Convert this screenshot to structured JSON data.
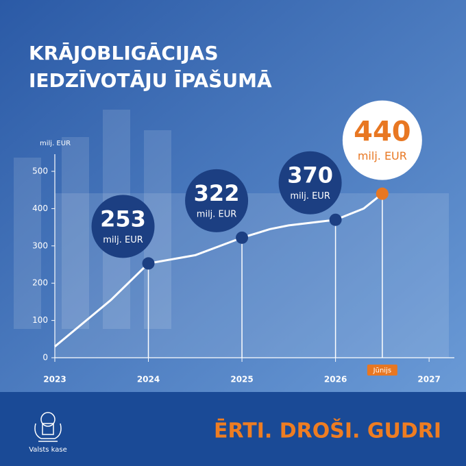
{
  "chart_data": {
    "type": "line",
    "title_lines": [
      "KRĀJOBLIGĀCIJAS",
      "IEDZĪVOTĀJU ĪPAŠUMĀ"
    ],
    "y_axis_label": "milj. EUR",
    "value_unit": "milj. EUR",
    "xlim": [
      2023,
      2027.27
    ],
    "xticks": [
      2023,
      2024,
      2025,
      2026,
      2027
    ],
    "ylim": [
      0,
      546
    ],
    "yticks": [
      0,
      100,
      200,
      300,
      400,
      500
    ],
    "series": [
      {
        "color": "#ffffff",
        "x": [
          2023,
          2023.6,
          2024,
          2024.5,
          2025,
          2025.3,
          2025.5,
          2026,
          2026.3,
          2026.5
        ],
        "values": [
          30,
          155,
          253,
          275,
          322,
          345,
          355,
          370,
          400,
          440
        ]
      }
    ],
    "highlights": {
      "x": [
        2024,
        2025,
        2026,
        2026.5
      ],
      "values": [
        253,
        322,
        370,
        440
      ],
      "color": "#1c3f82",
      "last_color": "#e87722"
    },
    "annotations": [
      {
        "text": "Jūnijs",
        "x": 2026.5
      }
    ]
  },
  "footer": {
    "slogan": "ĒRTI. DROŠI. GUDRI",
    "brand": "Valsts kase"
  }
}
